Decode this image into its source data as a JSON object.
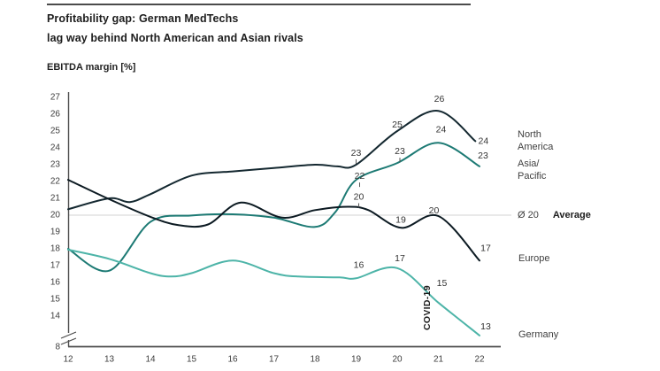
{
  "header": {
    "title_line1": "Profitability gap: German MedTechs",
    "title_line2": "lag way behind North American and Asian rivals",
    "axis_label": "EBITDA margin [%]"
  },
  "legend": {
    "north_america": [
      "North",
      "America"
    ],
    "asia_pacific": [
      "Asia/",
      "Pacific"
    ],
    "europe": "Europe",
    "germany": "Germany",
    "average_value": "Ø 20",
    "average_label": "Average"
  },
  "annotation": {
    "covid": "COVID-19"
  },
  "colors": {
    "north_america": "#142830",
    "asia_pacific": "#1d7a74",
    "europe": "#0c1a22",
    "germany": "#4db4a8",
    "average_line": "#dcdcdc",
    "axis": "#4d4d4d",
    "tick_text": "#3d3d3d",
    "data_label_text": "#333333"
  },
  "chart_data": {
    "type": "line",
    "title": "Profitability gap: German MedTechs lag way behind North American and Asian rivals",
    "ylabel": "EBITDA margin [%]",
    "legend_position": "right",
    "grid": "single horizontal average line at 20",
    "x": [
      12,
      13,
      14,
      15,
      16,
      17,
      18,
      19,
      20,
      21,
      22
    ],
    "x_ticks": [
      "12",
      "13",
      "14",
      "15",
      "16",
      "17",
      "18",
      "19",
      "20",
      "21",
      "22"
    ],
    "y_ticks": [
      27,
      26,
      25,
      24,
      23,
      22,
      21,
      20,
      19,
      18,
      17,
      16,
      15,
      14
    ],
    "y_axis_break_tick": 8,
    "average_value": 20,
    "series": [
      {
        "name": "North America",
        "color_key": "north_america",
        "values": [
          20.4,
          21,
          21.3,
          22.4,
          22.6,
          22.8,
          23,
          23,
          25,
          26,
          24
        ],
        "shape": [
          [
            12,
            20.35
          ],
          [
            13,
            21.0
          ],
          [
            13.5,
            20.78
          ],
          [
            14,
            21.25
          ],
          [
            15,
            22.35
          ],
          [
            16,
            22.6
          ],
          [
            17,
            22.8
          ],
          [
            18,
            23.0
          ],
          [
            18.55,
            22.9
          ],
          [
            19,
            23.0
          ],
          [
            20,
            25.0
          ],
          [
            21,
            26.2
          ],
          [
            21.9,
            24.4
          ]
        ],
        "point_labels": [
          {
            "x": 19,
            "v": 23,
            "t": "23",
            "dx": 0,
            "dy": -13,
            "tick": true
          },
          {
            "x": 20,
            "v": 25,
            "t": "25",
            "dx": 0,
            "dy": -7
          },
          {
            "x": 21,
            "v": 26.2,
            "t": "26",
            "dx": 1,
            "dy": -13
          },
          {
            "x": 21.9,
            "v": 24.4,
            "t": "24",
            "dx": 9,
            "dy": 0
          }
        ]
      },
      {
        "name": "Asia/Pacific",
        "color_key": "asia_pacific",
        "values": [
          18,
          16.7,
          19.6,
          20,
          20.1,
          19.9,
          19.3,
          22,
          23,
          24,
          23
        ],
        "shape": [
          [
            12,
            18.0
          ],
          [
            13,
            16.7
          ],
          [
            14,
            19.6
          ],
          [
            15,
            19.98
          ],
          [
            16,
            20.05
          ],
          [
            17,
            19.85
          ],
          [
            18,
            19.3
          ],
          [
            18.5,
            20.2
          ],
          [
            19,
            22.1
          ],
          [
            20,
            23.1
          ],
          [
            21,
            24.3
          ],
          [
            22,
            22.9
          ]
        ],
        "point_labels": [
          {
            "x": 19,
            "v": 22.1,
            "t": "22",
            "dx": 4,
            "dy": -4,
            "tick": true
          },
          {
            "x": 20,
            "v": 23.1,
            "t": "23",
            "dx": 3,
            "dy": -13,
            "tick": true
          },
          {
            "x": 21,
            "v": 24.3,
            "t": "24",
            "dx": 3,
            "dy": -15
          },
          {
            "x": 22,
            "v": 22.9,
            "t": "23",
            "dx": 4,
            "dy": -12
          }
        ]
      },
      {
        "name": "Europe",
        "color_key": "europe",
        "values": [
          22,
          21,
          19.9,
          19.4,
          20.7,
          19.9,
          20.4,
          20,
          19,
          20,
          17
        ],
        "shape": [
          [
            12,
            22.1
          ],
          [
            13,
            20.95
          ],
          [
            14,
            19.9
          ],
          [
            14.7,
            19.4
          ],
          [
            15.4,
            19.45
          ],
          [
            16.2,
            20.75
          ],
          [
            17.2,
            19.85
          ],
          [
            18,
            20.3
          ],
          [
            18.8,
            20.5
          ],
          [
            19.3,
            20.3
          ],
          [
            20.1,
            19.25
          ],
          [
            21,
            19.95
          ],
          [
            22,
            17.3
          ]
        ],
        "point_labels": [
          {
            "x": 19,
            "v": 20.45,
            "t": "20",
            "dx": 3,
            "dy": -12,
            "tick": true
          },
          {
            "x": 20,
            "v": 19.25,
            "t": "19",
            "dx": 4,
            "dy": -9
          },
          {
            "x": 21,
            "v": 19.95,
            "t": "20",
            "dx": -5,
            "dy": -6
          },
          {
            "x": 22,
            "v": 17.3,
            "t": "17",
            "dx": 7,
            "dy": -14
          }
        ]
      },
      {
        "name": "Germany",
        "color_key": "germany",
        "values": [
          18,
          17.4,
          16.6,
          16.6,
          17.3,
          16.5,
          16.3,
          16,
          17,
          15,
          13
        ],
        "shape": [
          [
            12,
            17.95
          ],
          [
            13,
            17.4
          ],
          [
            14,
            16.55
          ],
          [
            14.5,
            16.35
          ],
          [
            15,
            16.55
          ],
          [
            16,
            17.3
          ],
          [
            17,
            16.55
          ],
          [
            17.6,
            16.35
          ],
          [
            18.6,
            16.3
          ],
          [
            19,
            16.25
          ],
          [
            20,
            16.85
          ],
          [
            21,
            14.8
          ],
          [
            22,
            12.85
          ]
        ],
        "point_labels": [
          {
            "x": 19,
            "v": 16.25,
            "t": "16",
            "dx": 3,
            "dy": -15
          },
          {
            "x": 20,
            "v": 16.85,
            "t": "17",
            "dx": 3,
            "dy": -11
          },
          {
            "x": 21,
            "v": 14.8,
            "t": "15",
            "dx": 4,
            "dy": -22
          },
          {
            "x": 22,
            "v": 12.85,
            "t": "13",
            "dx": 7,
            "dy": -10
          }
        ]
      }
    ]
  }
}
